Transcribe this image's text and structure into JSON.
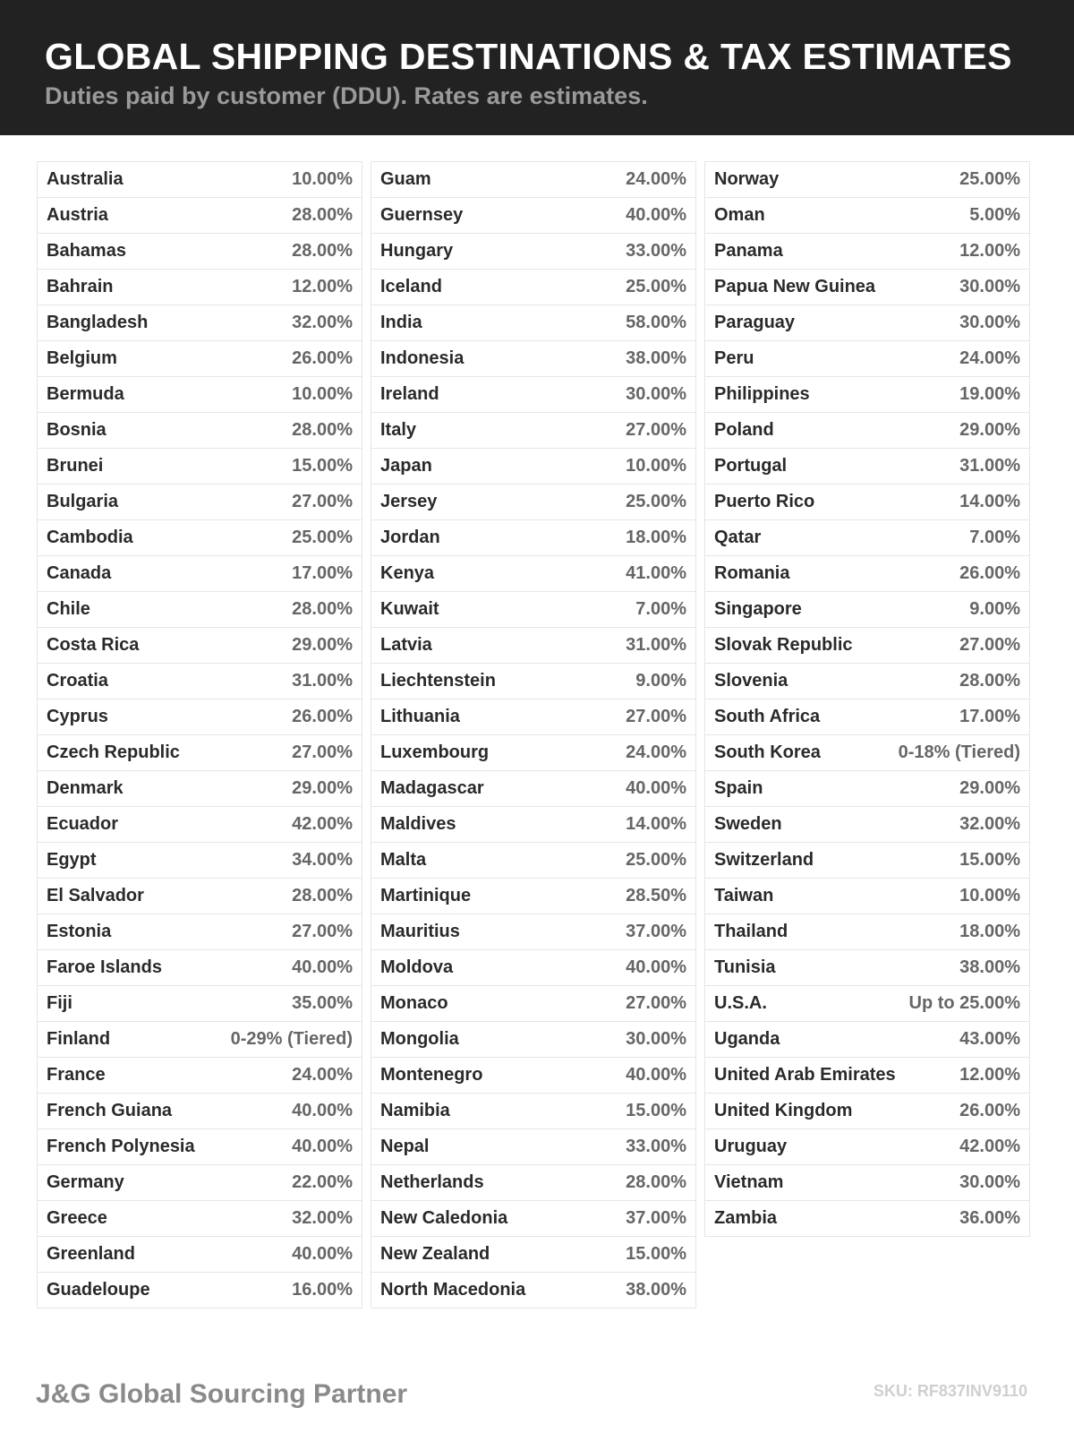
{
  "header": {
    "title": "GLOBAL SHIPPING DESTINATIONS & TAX ESTIMATES",
    "subtitle": "Duties paid by customer (DDU). Rates are estimates."
  },
  "columns": [
    [
      [
        "Australia",
        "10.00%"
      ],
      [
        "Austria",
        "28.00%"
      ],
      [
        "Bahamas",
        "28.00%"
      ],
      [
        "Bahrain",
        "12.00%"
      ],
      [
        "Bangladesh",
        "32.00%"
      ],
      [
        "Belgium",
        "26.00%"
      ],
      [
        "Bermuda",
        "10.00%"
      ],
      [
        "Bosnia",
        "28.00%"
      ],
      [
        "Brunei",
        "15.00%"
      ],
      [
        "Bulgaria",
        "27.00%"
      ],
      [
        "Cambodia",
        "25.00%"
      ],
      [
        "Canada",
        "17.00%"
      ],
      [
        "Chile",
        "28.00%"
      ],
      [
        "Costa Rica",
        "29.00%"
      ],
      [
        "Croatia",
        "31.00%"
      ],
      [
        "Cyprus",
        "26.00%"
      ],
      [
        "Czech Republic",
        "27.00%"
      ],
      [
        "Denmark",
        "29.00%"
      ],
      [
        "Ecuador",
        "42.00%"
      ],
      [
        "Egypt",
        "34.00%"
      ],
      [
        "El Salvador",
        "28.00%"
      ],
      [
        "Estonia",
        "27.00%"
      ],
      [
        "Faroe Islands",
        "40.00%"
      ],
      [
        "Fiji",
        "35.00%"
      ],
      [
        "Finland",
        "0-29% (Tiered)"
      ],
      [
        "France",
        "24.00%"
      ],
      [
        "French Guiana",
        "40.00%"
      ],
      [
        "French Polynesia",
        "40.00%"
      ],
      [
        "Germany",
        "22.00%"
      ],
      [
        "Greece",
        "32.00%"
      ],
      [
        "Greenland",
        "40.00%"
      ],
      [
        "Guadeloupe",
        "16.00%"
      ]
    ],
    [
      [
        "Guam",
        "24.00%"
      ],
      [
        "Guernsey",
        "40.00%"
      ],
      [
        "Hungary",
        "33.00%"
      ],
      [
        "Iceland",
        "25.00%"
      ],
      [
        "India",
        "58.00%"
      ],
      [
        "Indonesia",
        "38.00%"
      ],
      [
        "Ireland",
        "30.00%"
      ],
      [
        "Italy",
        "27.00%"
      ],
      [
        "Japan",
        "10.00%"
      ],
      [
        "Jersey",
        "25.00%"
      ],
      [
        "Jordan",
        "18.00%"
      ],
      [
        "Kenya",
        "41.00%"
      ],
      [
        "Kuwait",
        "7.00%"
      ],
      [
        "Latvia",
        "31.00%"
      ],
      [
        "Liechtenstein",
        "9.00%"
      ],
      [
        "Lithuania",
        "27.00%"
      ],
      [
        "Luxembourg",
        "24.00%"
      ],
      [
        "Madagascar",
        "40.00%"
      ],
      [
        "Maldives",
        "14.00%"
      ],
      [
        "Malta",
        "25.00%"
      ],
      [
        "Martinique",
        "28.50%"
      ],
      [
        "Mauritius",
        "37.00%"
      ],
      [
        "Moldova",
        "40.00%"
      ],
      [
        "Monaco",
        "27.00%"
      ],
      [
        "Mongolia",
        "30.00%"
      ],
      [
        "Montenegro",
        "40.00%"
      ],
      [
        "Namibia",
        "15.00%"
      ],
      [
        "Nepal",
        "33.00%"
      ],
      [
        "Netherlands",
        "28.00%"
      ],
      [
        "New Caledonia",
        "37.00%"
      ],
      [
        "New Zealand",
        "15.00%"
      ],
      [
        "North Macedonia",
        "38.00%"
      ]
    ],
    [
      [
        "Norway",
        "25.00%"
      ],
      [
        "Oman",
        "5.00%"
      ],
      [
        "Panama",
        "12.00%"
      ],
      [
        "Papua New Guinea",
        "30.00%"
      ],
      [
        "Paraguay",
        "30.00%"
      ],
      [
        "Peru",
        "24.00%"
      ],
      [
        "Philippines",
        "19.00%"
      ],
      [
        "Poland",
        "29.00%"
      ],
      [
        "Portugal",
        "31.00%"
      ],
      [
        "Puerto Rico",
        "14.00%"
      ],
      [
        "Qatar",
        "7.00%"
      ],
      [
        "Romania",
        "26.00%"
      ],
      [
        "Singapore",
        "9.00%"
      ],
      [
        "Slovak Republic",
        "27.00%"
      ],
      [
        "Slovenia",
        "28.00%"
      ],
      [
        "South Africa",
        "17.00%"
      ],
      [
        "South Korea",
        "0-18% (Tiered)"
      ],
      [
        "Spain",
        "29.00%"
      ],
      [
        "Sweden",
        "32.00%"
      ],
      [
        "Switzerland",
        "15.00%"
      ],
      [
        "Taiwan",
        "10.00%"
      ],
      [
        "Thailand",
        "18.00%"
      ],
      [
        "Tunisia",
        "38.00%"
      ],
      [
        "U.S.A.",
        "Up to 25.00%"
      ],
      [
        "Uganda",
        "43.00%"
      ],
      [
        "United Arab Emirates",
        "12.00%"
      ],
      [
        "United Kingdom",
        "26.00%"
      ],
      [
        "Uruguay",
        "42.00%"
      ],
      [
        "Vietnam",
        "30.00%"
      ],
      [
        "Zambia",
        "36.00%"
      ]
    ]
  ],
  "footer": {
    "brand": "J&G Global Sourcing Partner",
    "sku": "SKU: RF837INV9110"
  }
}
